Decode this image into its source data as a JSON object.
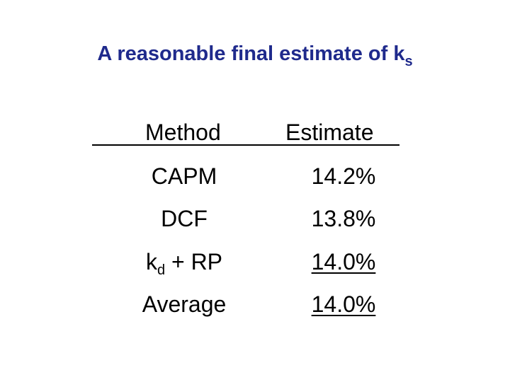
{
  "title": {
    "main": "A reasonable final estimate of k",
    "subscript": "s"
  },
  "colors": {
    "title": "#1f2a8c",
    "text": "#000000",
    "background": "#ffffff"
  },
  "table": {
    "headers": {
      "method": "Method",
      "estimate": "Estimate"
    },
    "rows": [
      {
        "method": "CAPM",
        "estimate": "14.2%"
      },
      {
        "method": "DCF",
        "estimate": "13.8%"
      },
      {
        "method_main": "k",
        "method_sub": "d",
        "method_rest": " + RP",
        "estimate": "14.0%"
      },
      {
        "method": "Average",
        "estimate": "14.0%"
      }
    ]
  }
}
